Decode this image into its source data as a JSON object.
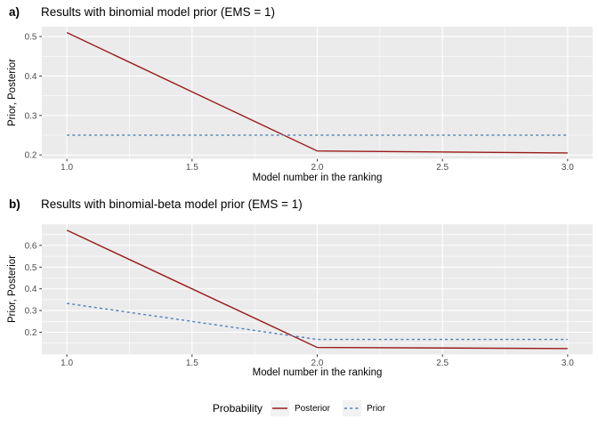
{
  "page": {
    "background": "#FFFFFF",
    "panel_background": "#EBEBEB",
    "grid_color": "#FFFFFF",
    "tick_label_color": "#4D4D4D",
    "axis_title_color": "#000000"
  },
  "legend": {
    "title": "Probability",
    "key_background": "#F2F2F2",
    "items": [
      {
        "label": "Posterior",
        "color": "#9A1B1B",
        "linetype": "solid"
      },
      {
        "label": "Prior",
        "color": "#4D7EBF",
        "linetype": "dashed"
      }
    ]
  },
  "chart_data": [
    {
      "type": "line",
      "tag": "a)",
      "title": "Results with binomial model prior (EMS = 1)",
      "xlabel": "Model number in the ranking",
      "ylabel": "Prior, Posterior",
      "x": [
        1,
        2,
        3
      ],
      "series": [
        {
          "name": "Posterior",
          "values": [
            0.51,
            0.21,
            0.205
          ],
          "color": "#9A1B1B",
          "linetype": "solid"
        },
        {
          "name": "Prior",
          "values": [
            0.25,
            0.25,
            0.25
          ],
          "color": "#4D7EBF",
          "linetype": "dashed"
        }
      ],
      "xlim": [
        0.9,
        3.1
      ],
      "ylim": [
        0.19,
        0.525
      ],
      "x_ticks": [
        1.0,
        1.5,
        2.0,
        2.5,
        3.0
      ],
      "y_ticks": [
        0.2,
        0.3,
        0.4,
        0.5
      ],
      "grid": true,
      "legend_position": "bottom"
    },
    {
      "type": "line",
      "tag": "b)",
      "title": "Results with binomial-beta model prior (EMS = 1)",
      "xlabel": "Model number in the ranking",
      "ylabel": "Prior, Posterior",
      "x": [
        1,
        2,
        3
      ],
      "series": [
        {
          "name": "Posterior",
          "values": [
            0.67,
            0.13,
            0.125
          ],
          "color": "#9A1B1B",
          "linetype": "solid"
        },
        {
          "name": "Prior",
          "values": [
            0.333,
            0.167,
            0.167
          ],
          "color": "#4D7EBF",
          "linetype": "dashed"
        }
      ],
      "xlim": [
        0.9,
        3.1
      ],
      "ylim": [
        0.098,
        0.697
      ],
      "x_ticks": [
        1.0,
        1.5,
        2.0,
        2.5,
        3.0
      ],
      "y_ticks": [
        0.2,
        0.3,
        0.4,
        0.5,
        0.6
      ],
      "grid": true,
      "legend_position": "bottom"
    }
  ]
}
